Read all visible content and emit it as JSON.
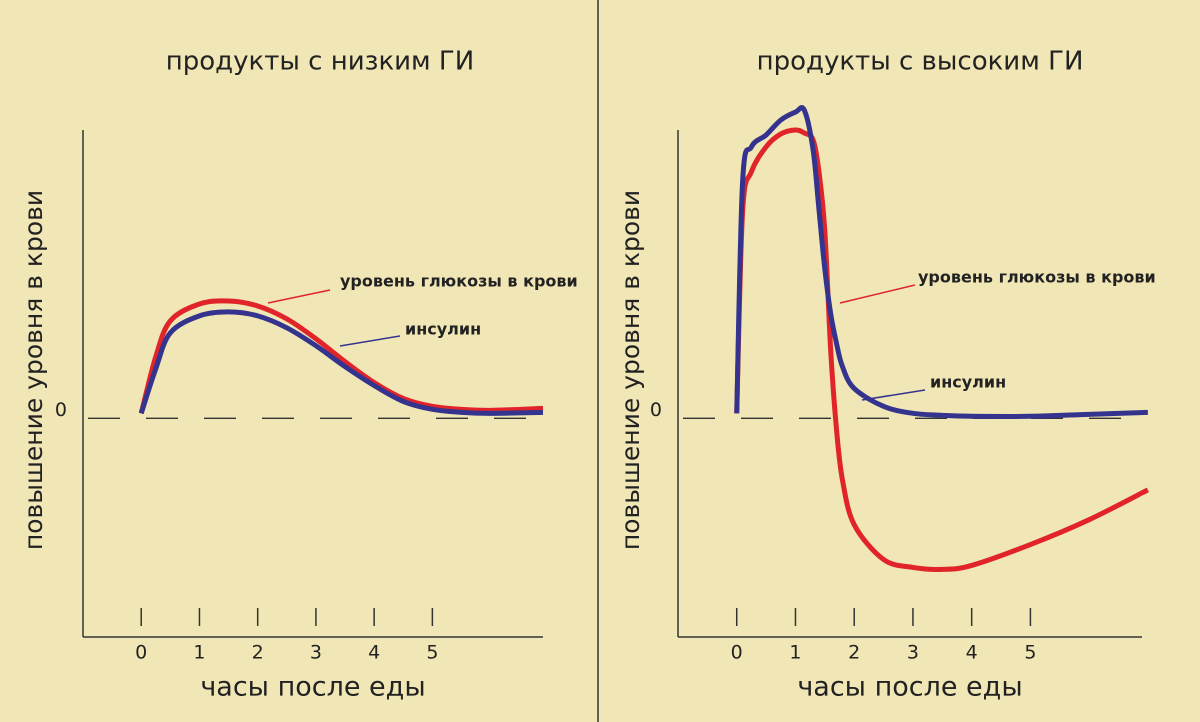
{
  "chart_data": [
    {
      "type": "line",
      "title": "продукты с низким ГИ",
      "xlabel": "часы после еды",
      "ylabel": "повышение уровня в крови",
      "x": [
        0,
        0.25,
        0.5,
        1,
        1.5,
        2,
        2.5,
        3,
        3.5,
        4,
        4.5,
        5,
        5.5,
        6,
        6.9
      ],
      "series": [
        {
          "name": "уровень глюкозы в крови",
          "color": "#e0242a",
          "values": [
            0.05,
            0.62,
            0.98,
            1.15,
            1.18,
            1.13,
            1.0,
            0.8,
            0.57,
            0.36,
            0.2,
            0.12,
            0.09,
            0.08,
            0.1
          ]
        },
        {
          "name": "инсулин",
          "color": "#34348f",
          "values": [
            0.05,
            0.5,
            0.86,
            1.03,
            1.07,
            1.03,
            0.91,
            0.73,
            0.52,
            0.33,
            0.17,
            0.09,
            0.06,
            0.05,
            0.06
          ]
        }
      ],
      "xlim": [
        -1,
        6.9
      ],
      "ylim": [
        -2.2,
        2.9
      ],
      "xticks": [
        0,
        1,
        2,
        3,
        4,
        5
      ],
      "yticks": [
        0
      ]
    },
    {
      "type": "line",
      "title": "продукты с высоким ГИ",
      "xlabel": "часы после еды",
      "ylabel": "повышение уровня в крови",
      "x": [
        0,
        0.1,
        0.25,
        0.5,
        0.75,
        1,
        1.15,
        1.3,
        1.4,
        1.5,
        1.6,
        1.7,
        1.8,
        2,
        2.5,
        3,
        3.5,
        4,
        5,
        6,
        7
      ],
      "series": [
        {
          "name": "уровень глюкозы в крови",
          "color": "#e0242a",
          "values": [
            0.05,
            2.08,
            2.48,
            2.73,
            2.86,
            2.9,
            2.87,
            2.8,
            2.48,
            1.88,
            0.68,
            -0.12,
            -0.62,
            -1.07,
            -1.42,
            -1.5,
            -1.52,
            -1.48,
            -1.27,
            -1.02,
            -0.72
          ]
        },
        {
          "name": "инсулин",
          "color": "#34348f",
          "values": [
            0.05,
            2.38,
            2.73,
            2.85,
            3.0,
            3.08,
            3.1,
            2.7,
            2.1,
            1.5,
            1.05,
            0.75,
            0.52,
            0.3,
            0.12,
            0.05,
            0.03,
            0.02,
            0.02,
            0.04,
            0.06
          ]
        }
      ],
      "xlim": [
        -1,
        6.9
      ],
      "ylim": [
        -2.2,
        2.9
      ],
      "xticks": [
        0,
        1,
        2,
        3,
        4,
        5
      ],
      "yticks": [
        0
      ]
    }
  ]
}
